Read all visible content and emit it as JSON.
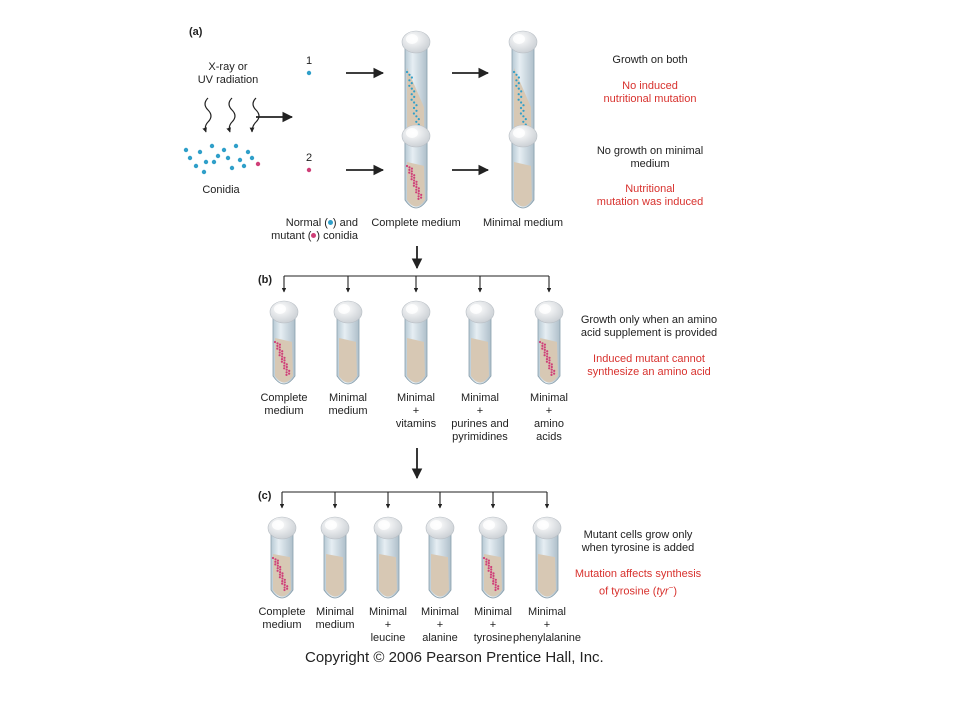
{
  "panel_a": {
    "label": "(a)",
    "radiation": [
      "X-ray or",
      "UV radiation"
    ],
    "conidia": "Conidia",
    "strain_1": "1",
    "strain_2": "2",
    "normal_mutant": [
      "Normal (",
      ") and",
      "mutant (",
      ") conidia"
    ],
    "complete": "Complete medium",
    "minimal": "Minimal medium",
    "result_1": [
      "Growth on both"
    ],
    "result_1_red": [
      "No induced",
      "nutritional mutation"
    ],
    "result_2": [
      "No growth on minimal",
      "medium"
    ],
    "result_2_red": [
      "Nutritional",
      "mutation was induced"
    ]
  },
  "panel_b": {
    "label": "(b)",
    "tubes": [
      {
        "lines": [
          "Complete",
          "medium"
        ],
        "growth": true
      },
      {
        "lines": [
          "Minimal",
          "medium"
        ],
        "growth": false
      },
      {
        "lines": [
          "Minimal",
          "+",
          "vitamins"
        ],
        "growth": false
      },
      {
        "lines": [
          "Minimal",
          "+",
          "purines and",
          "pyrimidines"
        ],
        "growth": false
      },
      {
        "lines": [
          "Minimal",
          "+",
          "amino",
          "acids"
        ],
        "growth": true
      }
    ],
    "result": [
      "Growth only when an amino",
      "acid supplement is provided"
    ],
    "result_red": [
      "Induced mutant cannot",
      "synthesize an amino acid"
    ]
  },
  "panel_c": {
    "label": "(c)",
    "tubes": [
      {
        "lines": [
          "Complete",
          "medium"
        ],
        "growth": true
      },
      {
        "lines": [
          "Minimal",
          "medium"
        ],
        "growth": false
      },
      {
        "lines": [
          "Minimal",
          "+",
          "leucine"
        ],
        "growth": false
      },
      {
        "lines": [
          "Minimal",
          "+",
          "alanine"
        ],
        "growth": false
      },
      {
        "lines": [
          "Minimal",
          "+",
          "tyrosine"
        ],
        "growth": true
      },
      {
        "lines": [
          "Minimal",
          "+",
          "phenylalanine"
        ],
        "growth": false
      }
    ],
    "result": [
      "Mutant cells grow only",
      "when tyrosine is added"
    ],
    "result_red": [
      "Mutation affects synthesis",
      "of tyrosine ("
    ],
    "tyr_italic": "tyr",
    "tyr_sup": "−",
    "tyr_close": ")"
  },
  "colors": {
    "normal_dot": "#2f9fc9",
    "mutant_dot": "#cf3f78",
    "red_text": "#d8322e",
    "agar": "#d7c8b4",
    "glass": "#cfdde6",
    "cotton": "#e6e9ec"
  },
  "copyright": "Copyright © 2006 Pearson Prentice Hall, Inc."
}
